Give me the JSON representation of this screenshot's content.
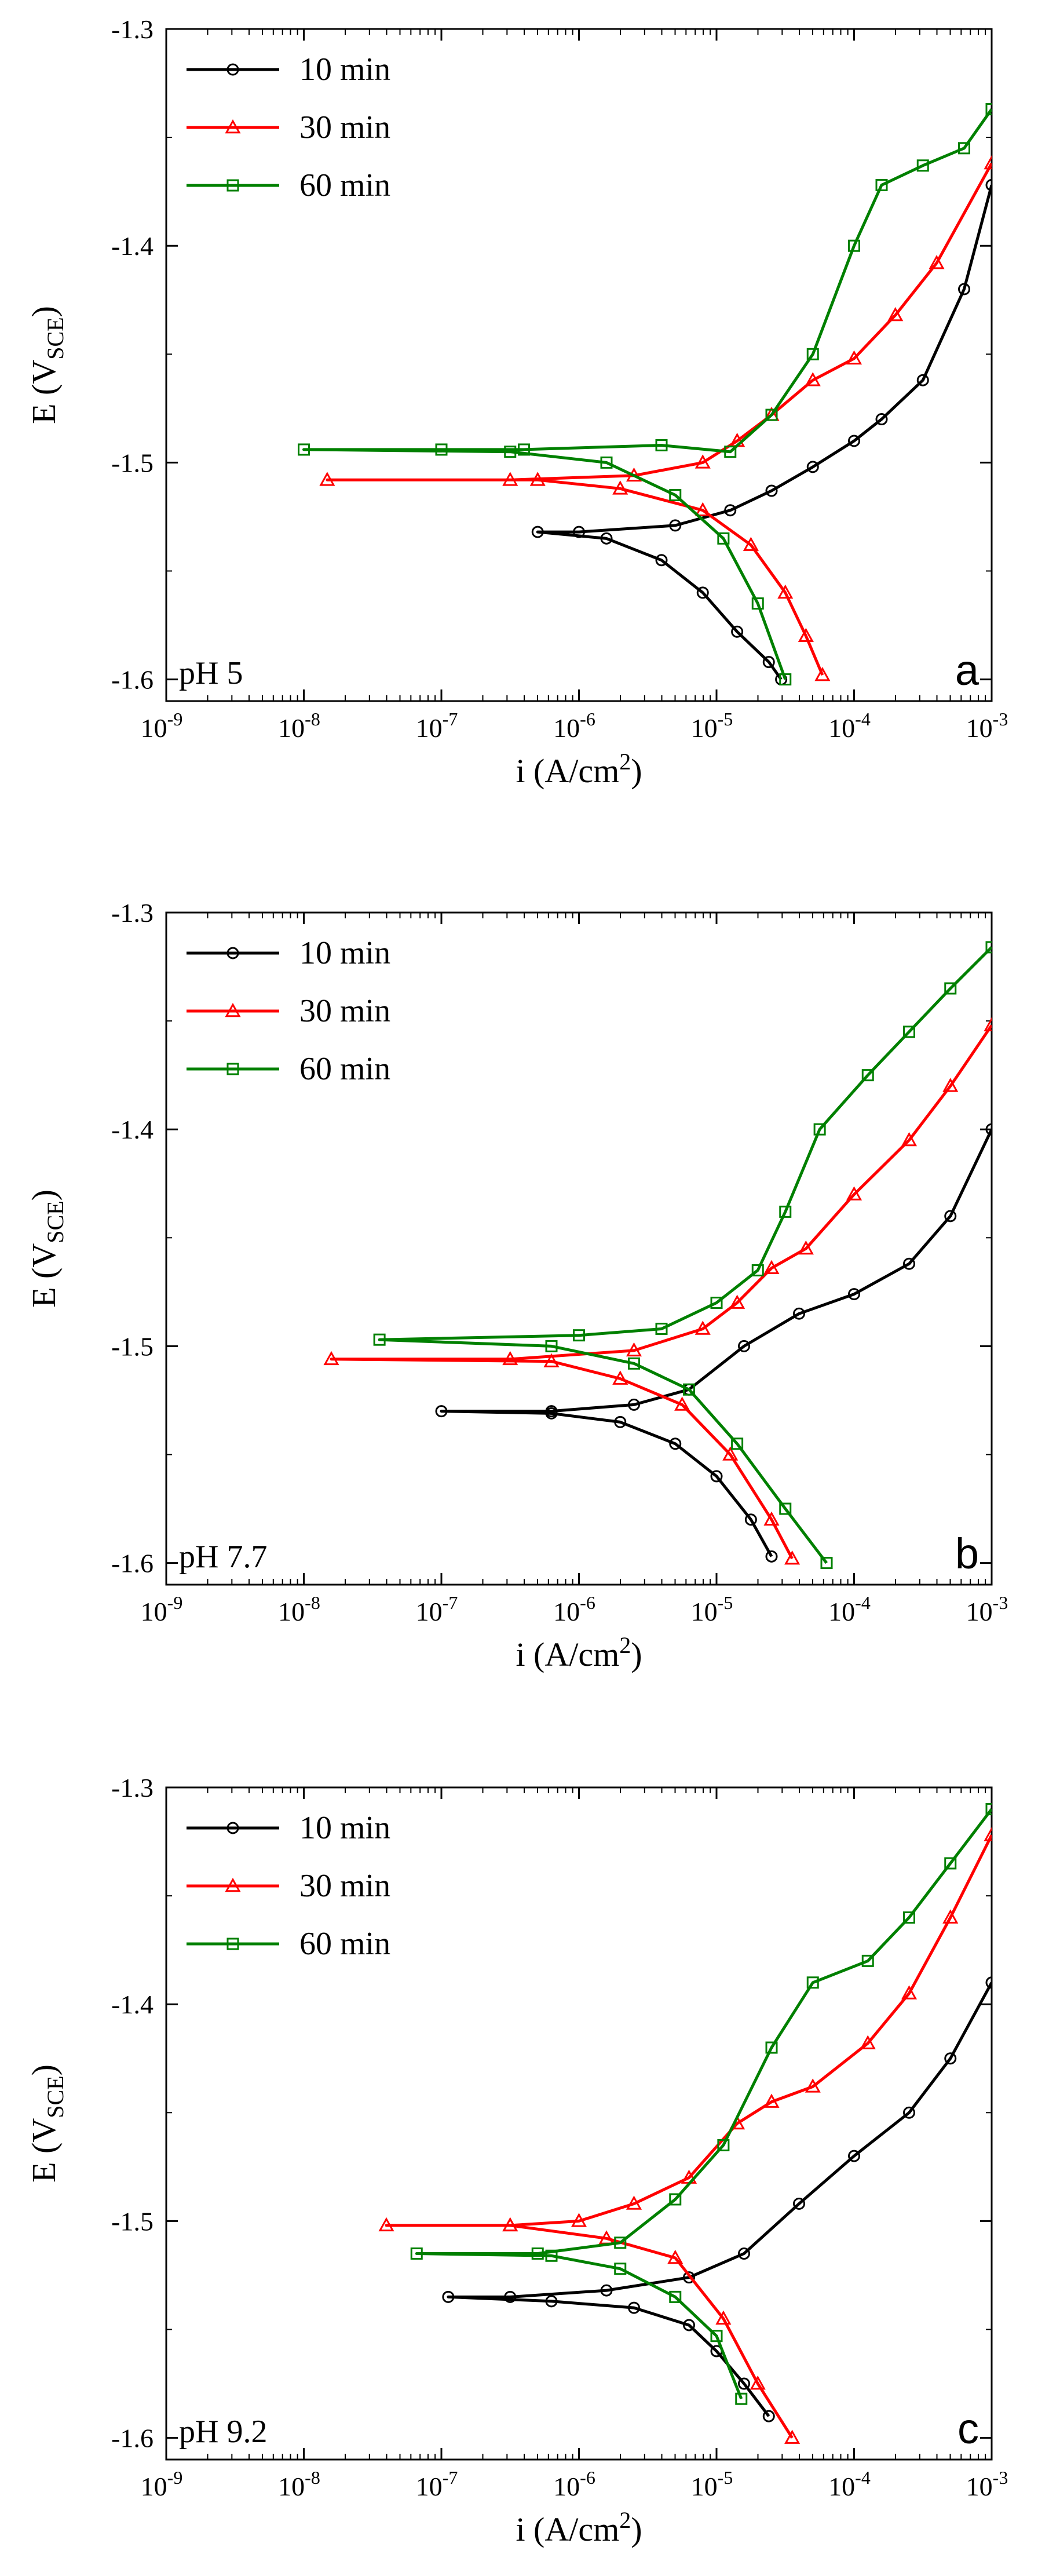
{
  "chart_data": [
    {
      "type": "line",
      "panel_label": "a",
      "condition": "pH 5",
      "xlabel": {
        "prefix": "i (A/cm",
        "sup": "2",
        "suffix": ")"
      },
      "ylabel": {
        "prefix": "E (V",
        "sub": "SCE",
        "suffix": ")"
      },
      "xscale": "log",
      "xlim": [
        1e-09,
        0.001
      ],
      "ylim": [
        -1.61,
        -1.3
      ],
      "yticks": [
        "-1.3",
        "-1.4",
        "-1.5",
        "-1.6"
      ],
      "ytick_values": [
        -1.3,
        -1.4,
        -1.5,
        -1.6
      ],
      "xticks": [
        {
          "base": "10",
          "exp": "-9"
        },
        {
          "base": "10",
          "exp": "-8"
        },
        {
          "base": "10",
          "exp": "-7"
        },
        {
          "base": "10",
          "exp": "-6"
        },
        {
          "base": "10",
          "exp": "-5"
        },
        {
          "base": "10",
          "exp": "-4"
        },
        {
          "base": "10",
          "exp": "-3"
        }
      ],
      "xtick_exps": [
        -9,
        -8,
        -7,
        -6,
        -5,
        -4,
        -3
      ],
      "legend_position": "top-left",
      "series": [
        {
          "name": "10 min",
          "color": "#000000",
          "marker": "circle",
          "points": [
            [
              -3.0,
              -1.372
            ],
            [
              -3.2,
              -1.42
            ],
            [
              -3.5,
              -1.462
            ],
            [
              -3.8,
              -1.48
            ],
            [
              -4.0,
              -1.49
            ],
            [
              -4.3,
              -1.502
            ],
            [
              -4.6,
              -1.513
            ],
            [
              -4.9,
              -1.522
            ],
            [
              -5.3,
              -1.529
            ],
            [
              -6.0,
              -1.532
            ],
            [
              -6.3,
              -1.532
            ],
            [
              -5.8,
              -1.535
            ],
            [
              -5.4,
              -1.545
            ],
            [
              -5.1,
              -1.56
            ],
            [
              -4.85,
              -1.578
            ],
            [
              -4.62,
              -1.592
            ],
            [
              -4.53,
              -1.6
            ]
          ]
        },
        {
          "name": "30 min",
          "color": "#ff0000",
          "marker": "triangle",
          "points": [
            [
              -3.0,
              -1.362
            ],
            [
              -3.4,
              -1.408
            ],
            [
              -3.7,
              -1.432
            ],
            [
              -4.0,
              -1.452
            ],
            [
              -4.3,
              -1.462
            ],
            [
              -4.6,
              -1.478
            ],
            [
              -4.85,
              -1.49
            ],
            [
              -5.1,
              -1.5
            ],
            [
              -5.6,
              -1.506
            ],
            [
              -6.5,
              -1.508
            ],
            [
              -7.83,
              -1.508
            ],
            [
              -6.3,
              -1.508
            ],
            [
              -5.7,
              -1.512
            ],
            [
              -5.1,
              -1.522
            ],
            [
              -4.75,
              -1.538
            ],
            [
              -4.5,
              -1.56
            ],
            [
              -4.35,
              -1.58
            ],
            [
              -4.23,
              -1.598
            ]
          ]
        },
        {
          "name": "60 min",
          "color": "#008000",
          "marker": "square",
          "points": [
            [
              -3.0,
              -1.337
            ],
            [
              -3.2,
              -1.355
            ],
            [
              -3.5,
              -1.363
            ],
            [
              -3.8,
              -1.372
            ],
            [
              -4.0,
              -1.4
            ],
            [
              -4.3,
              -1.45
            ],
            [
              -4.6,
              -1.478
            ],
            [
              -4.9,
              -1.495
            ],
            [
              -5.4,
              -1.492
            ],
            [
              -6.4,
              -1.494
            ],
            [
              -7.0,
              -1.494
            ],
            [
              -8.0,
              -1.494
            ],
            [
              -6.5,
              -1.495
            ],
            [
              -5.8,
              -1.5
            ],
            [
              -5.3,
              -1.515
            ],
            [
              -4.95,
              -1.535
            ],
            [
              -4.7,
              -1.565
            ],
            [
              -4.5,
              -1.6
            ]
          ]
        }
      ]
    },
    {
      "type": "line",
      "panel_label": "b",
      "condition": "pH 7.7",
      "xlabel": {
        "prefix": "i (A/cm",
        "sup": "2",
        "suffix": ")"
      },
      "ylabel": {
        "prefix": "E (V",
        "sub": "SCE",
        "suffix": ")"
      },
      "xscale": "log",
      "xlim": [
        1e-09,
        0.001
      ],
      "ylim": [
        -1.61,
        -1.3
      ],
      "yticks": [
        "-1.3",
        "-1.4",
        "-1.5",
        "-1.6"
      ],
      "ytick_values": [
        -1.3,
        -1.4,
        -1.5,
        -1.6
      ],
      "xticks": [
        {
          "base": "10",
          "exp": "-9"
        },
        {
          "base": "10",
          "exp": "-8"
        },
        {
          "base": "10",
          "exp": "-7"
        },
        {
          "base": "10",
          "exp": "-6"
        },
        {
          "base": "10",
          "exp": "-5"
        },
        {
          "base": "10",
          "exp": "-4"
        },
        {
          "base": "10",
          "exp": "-3"
        }
      ],
      "xtick_exps": [
        -9,
        -8,
        -7,
        -6,
        -5,
        -4,
        -3
      ],
      "legend_position": "top-left",
      "series": [
        {
          "name": "10 min",
          "color": "#000000",
          "marker": "circle",
          "points": [
            [
              -3.0,
              -1.4
            ],
            [
              -3.3,
              -1.44
            ],
            [
              -3.6,
              -1.462
            ],
            [
              -4.0,
              -1.476
            ],
            [
              -4.4,
              -1.485
            ],
            [
              -4.8,
              -1.5
            ],
            [
              -5.2,
              -1.52
            ],
            [
              -5.6,
              -1.527
            ],
            [
              -6.2,
              -1.53
            ],
            [
              -7.0,
              -1.53
            ],
            [
              -6.2,
              -1.531
            ],
            [
              -5.7,
              -1.535
            ],
            [
              -5.3,
              -1.545
            ],
            [
              -5.0,
              -1.56
            ],
            [
              -4.75,
              -1.58
            ],
            [
              -4.6,
              -1.597
            ]
          ]
        },
        {
          "name": "30 min",
          "color": "#ff0000",
          "marker": "triangle",
          "points": [
            [
              -3.0,
              -1.352
            ],
            [
              -3.3,
              -1.38
            ],
            [
              -3.6,
              -1.405
            ],
            [
              -4.0,
              -1.43
            ],
            [
              -4.35,
              -1.455
            ],
            [
              -4.6,
              -1.464
            ],
            [
              -4.85,
              -1.48
            ],
            [
              -5.1,
              -1.492
            ],
            [
              -5.6,
              -1.502
            ],
            [
              -6.5,
              -1.506
            ],
            [
              -7.8,
              -1.506
            ],
            [
              -6.2,
              -1.507
            ],
            [
              -5.7,
              -1.515
            ],
            [
              -5.25,
              -1.527
            ],
            [
              -4.9,
              -1.55
            ],
            [
              -4.6,
              -1.58
            ],
            [
              -4.45,
              -1.598
            ]
          ]
        },
        {
          "name": "60 min",
          "color": "#008000",
          "marker": "square",
          "points": [
            [
              -3.0,
              -1.316
            ],
            [
              -3.3,
              -1.335
            ],
            [
              -3.6,
              -1.355
            ],
            [
              -3.9,
              -1.375
            ],
            [
              -4.25,
              -1.4
            ],
            [
              -4.5,
              -1.438
            ],
            [
              -4.7,
              -1.465
            ],
            [
              -5.0,
              -1.48
            ],
            [
              -5.4,
              -1.492
            ],
            [
              -6.0,
              -1.495
            ],
            [
              -7.45,
              -1.497
            ],
            [
              -6.2,
              -1.5
            ],
            [
              -5.6,
              -1.508
            ],
            [
              -5.2,
              -1.52
            ],
            [
              -4.85,
              -1.545
            ],
            [
              -4.5,
              -1.575
            ],
            [
              -4.2,
              -1.6
            ]
          ]
        }
      ]
    },
    {
      "type": "line",
      "panel_label": "c",
      "condition": "pH 9.2",
      "xlabel": {
        "prefix": "i (A/cm",
        "sup": "2",
        "suffix": ")"
      },
      "ylabel": {
        "prefix": "E (V",
        "sub": "SCE",
        "suffix": ")"
      },
      "xscale": "log",
      "xlim": [
        1e-09,
        0.001
      ],
      "ylim": [
        -1.61,
        -1.3
      ],
      "yticks": [
        "-1.3",
        "-1.4",
        "-1.5",
        "-1.6"
      ],
      "ytick_values": [
        -1.3,
        -1.4,
        -1.5,
        -1.6
      ],
      "xticks": [
        {
          "base": "10",
          "exp": "-9"
        },
        {
          "base": "10",
          "exp": "-8"
        },
        {
          "base": "10",
          "exp": "-7"
        },
        {
          "base": "10",
          "exp": "-6"
        },
        {
          "base": "10",
          "exp": "-5"
        },
        {
          "base": "10",
          "exp": "-4"
        },
        {
          "base": "10",
          "exp": "-3"
        }
      ],
      "xtick_exps": [
        -9,
        -8,
        -7,
        -6,
        -5,
        -4,
        -3
      ],
      "legend_position": "top-left",
      "series": [
        {
          "name": "10 min",
          "color": "#000000",
          "marker": "circle",
          "points": [
            [
              -3.0,
              -1.39
            ],
            [
              -3.3,
              -1.425
            ],
            [
              -3.6,
              -1.45
            ],
            [
              -4.0,
              -1.47
            ],
            [
              -4.4,
              -1.492
            ],
            [
              -4.8,
              -1.515
            ],
            [
              -5.2,
              -1.526
            ],
            [
              -5.8,
              -1.532
            ],
            [
              -6.5,
              -1.535
            ],
            [
              -6.95,
              -1.535
            ],
            [
              -6.2,
              -1.537
            ],
            [
              -5.6,
              -1.54
            ],
            [
              -5.2,
              -1.548
            ],
            [
              -5.0,
              -1.56
            ],
            [
              -4.8,
              -1.575
            ],
            [
              -4.62,
              -1.59
            ]
          ]
        },
        {
          "name": "30 min",
          "color": "#ff0000",
          "marker": "triangle",
          "points": [
            [
              -3.0,
              -1.322
            ],
            [
              -3.3,
              -1.36
            ],
            [
              -3.6,
              -1.395
            ],
            [
              -3.9,
              -1.418
            ],
            [
              -4.3,
              -1.438
            ],
            [
              -4.6,
              -1.445
            ],
            [
              -4.85,
              -1.455
            ],
            [
              -5.2,
              -1.48
            ],
            [
              -5.6,
              -1.492
            ],
            [
              -6.0,
              -1.5
            ],
            [
              -6.5,
              -1.502
            ],
            [
              -7.4,
              -1.502
            ],
            [
              -6.5,
              -1.502
            ],
            [
              -5.8,
              -1.508
            ],
            [
              -5.3,
              -1.517
            ],
            [
              -4.95,
              -1.545
            ],
            [
              -4.7,
              -1.575
            ],
            [
              -4.45,
              -1.6
            ]
          ]
        },
        {
          "name": "60 min",
          "color": "#008000",
          "marker": "square",
          "points": [
            [
              -3.0,
              -1.31
            ],
            [
              -3.3,
              -1.335
            ],
            [
              -3.6,
              -1.36
            ],
            [
              -3.9,
              -1.38
            ],
            [
              -4.3,
              -1.39
            ],
            [
              -4.6,
              -1.42
            ],
            [
              -4.95,
              -1.465
            ],
            [
              -5.3,
              -1.49
            ],
            [
              -5.7,
              -1.51
            ],
            [
              -6.3,
              -1.515
            ],
            [
              -7.18,
              -1.515
            ],
            [
              -6.2,
              -1.516
            ],
            [
              -5.7,
              -1.522
            ],
            [
              -5.3,
              -1.535
            ],
            [
              -5.0,
              -1.553
            ],
            [
              -4.82,
              -1.582
            ]
          ]
        }
      ]
    }
  ]
}
